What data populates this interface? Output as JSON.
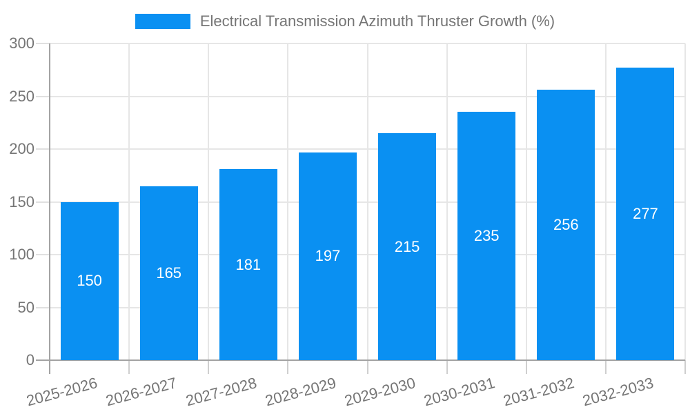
{
  "chart_data": {
    "type": "bar",
    "title": "Electrical Transmission Azimuth Thruster Growth (%)",
    "categories": [
      "2025-2026",
      "2026-2027",
      "2027-2028",
      "2028-2029",
      "2029-2030",
      "2030-2031",
      "2031-2032",
      "2032-2033"
    ],
    "values": [
      150,
      165,
      181,
      197,
      215,
      235,
      256,
      277
    ],
    "value_labels": [
      "150",
      "165",
      "181",
      "197",
      "215",
      "235",
      "256",
      "277"
    ],
    "xlabel": "",
    "ylabel": "",
    "ylim": [
      0,
      300
    ],
    "yticks": [
      0,
      50,
      100,
      150,
      200,
      250,
      300
    ],
    "grid": true,
    "legend_position": "top",
    "x_tick_rotation_deg": -15,
    "colors": {
      "bar": "#0a90f2",
      "value_label": "#ffffff",
      "axis_line": "#a3a3a3",
      "grid_line": "#e6e6e6",
      "left_tick": "#e0e0e0",
      "bottom_tick": "#cfcfcf",
      "tick_text": "#757575",
      "legend_text": "#757575"
    }
  }
}
